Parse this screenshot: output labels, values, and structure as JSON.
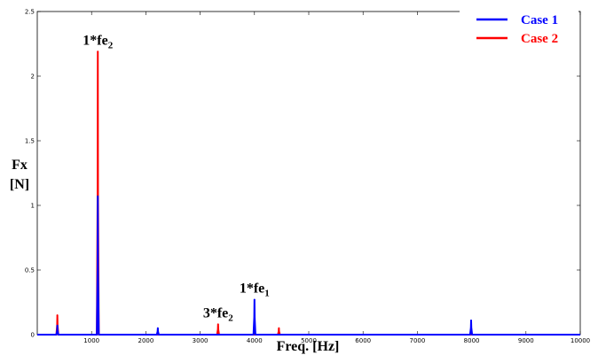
{
  "chart_data": {
    "type": "line",
    "xlabel": "Freq. [Hz]",
    "ylabel_line1": "Fx",
    "ylabel_line2": "[N]",
    "xlim": [
      0,
      10000
    ],
    "ylim": [
      0,
      2.5
    ],
    "x_ticks": [
      1000,
      2000,
      3000,
      4000,
      5000,
      6000,
      7000,
      8000,
      9000,
      10000
    ],
    "y_ticks": [
      0,
      0.5,
      1,
      1.5,
      2,
      2.5
    ],
    "x_tick_labels": [
      "1000",
      "2000",
      "3000",
      "4000",
      "5000",
      "6000",
      "7000",
      "8000",
      "9000",
      "10000"
    ],
    "y_tick_labels": [
      "0",
      "0.5",
      "1",
      "1.5",
      "2",
      "2.5"
    ],
    "grid": false,
    "legend_position": "top-right",
    "series": [
      {
        "name": "Case 1",
        "color": "#0000ff",
        "peaks": [
          {
            "x": 370,
            "y": 0.07
          },
          {
            "x": 1115,
            "y": 1.07
          },
          {
            "x": 2220,
            "y": 0.05
          },
          {
            "x": 4000,
            "y": 0.27
          },
          {
            "x": 7990,
            "y": 0.11
          }
        ]
      },
      {
        "name": "Case 2",
        "color": "#ff0000",
        "peaks": [
          {
            "x": 370,
            "y": 0.15
          },
          {
            "x": 1115,
            "y": 2.19
          },
          {
            "x": 3330,
            "y": 0.08
          },
          {
            "x": 4450,
            "y": 0.05
          }
        ]
      }
    ],
    "annotations": [
      {
        "base": "1*fe",
        "sub": "2",
        "x": 1115,
        "y": 2.19
      },
      {
        "base": "3*fe",
        "sub": "2",
        "x": 3330,
        "y": 0.08
      },
      {
        "base": "1*fe",
        "sub": "1",
        "x": 4000,
        "y": 0.27
      }
    ]
  }
}
